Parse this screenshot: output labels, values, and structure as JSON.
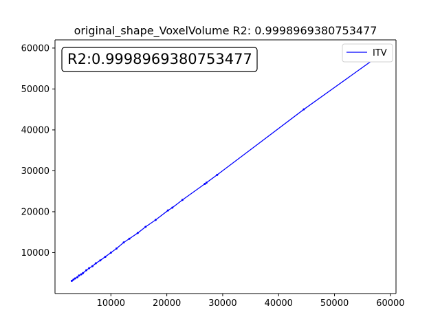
{
  "chart_data": {
    "type": "line",
    "title": "original_shape_VoxelVolume R2: 0.9998969380753477",
    "xlabel": "",
    "ylabel": "",
    "xlim": [
      0,
      61000
    ],
    "ylim": [
      0,
      62000
    ],
    "x_ticks": [
      10000,
      20000,
      30000,
      40000,
      50000,
      60000
    ],
    "y_ticks": [
      10000,
      20000,
      30000,
      40000,
      50000,
      60000
    ],
    "x_tick_labels": [
      "10000",
      "20000",
      "30000",
      "40000",
      "50000",
      "60000"
    ],
    "y_tick_labels": [
      "10000",
      "20000",
      "30000",
      "40000",
      "50000",
      "60000"
    ],
    "grid": false,
    "legend_position": "top-right",
    "annotation": "R2:0.9998969380753477",
    "series": [
      {
        "name": "ITV",
        "color": "#0000ff",
        "x": [
          3000,
          3300,
          3600,
          4000,
          4300,
          4700,
          5000,
          5600,
          6100,
          6700,
          7300,
          8100,
          9000,
          10000,
          11000,
          12300,
          13300,
          14800,
          16200,
          18000,
          20200,
          21000,
          22800,
          26800,
          27100,
          29000,
          44500,
          57500
        ],
        "y": [
          3100,
          3400,
          3700,
          4000,
          4400,
          4700,
          5000,
          5700,
          6200,
          6700,
          7400,
          8100,
          9000,
          10000,
          11000,
          12500,
          13400,
          14800,
          16300,
          18000,
          20300,
          21000,
          22900,
          26800,
          27100,
          29000,
          45000,
          57700
        ]
      }
    ]
  }
}
